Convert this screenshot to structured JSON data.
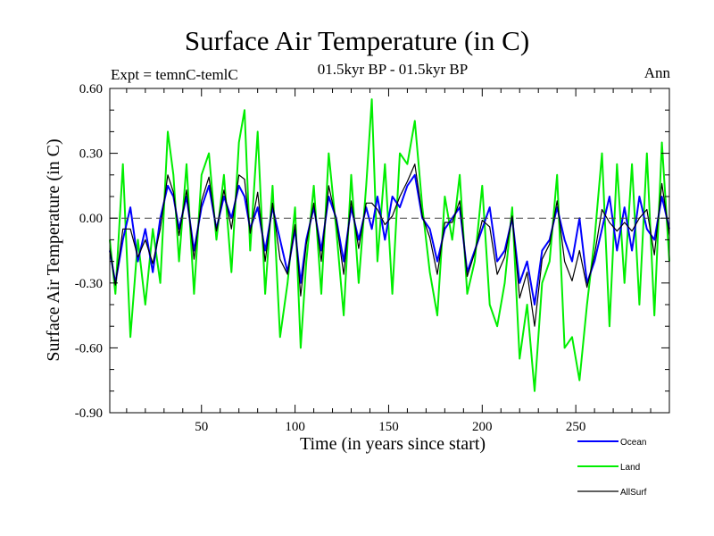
{
  "chart_data": {
    "type": "line",
    "title": "Surface Air Temperature (in C)",
    "subtitle": "01.5kyr BP - 01.5kyr BP",
    "experiment_label": "Expt = temnC-temlC",
    "season_label": "Ann",
    "xlabel": "Time (in years since start)",
    "ylabel": "Surface Air Temperature (in C)",
    "xlim": [
      1,
      300
    ],
    "ylim": [
      -0.9,
      0.6
    ],
    "x_ticks": [
      50,
      100,
      150,
      200,
      250
    ],
    "y_ticks": [
      0.6,
      0.3,
      0.0,
      -0.3,
      -0.6,
      -0.9
    ],
    "y_tick_labels": [
      "0.60",
      "0.30",
      "0.00",
      "-0.30",
      "-0.60",
      "-0.90"
    ],
    "zero_reference_line": true,
    "legend_position": "bottom-right, below axes",
    "series": [
      {
        "name": "Ocean",
        "color": "#0000ff",
        "x": [
          1,
          4,
          8,
          12,
          16,
          20,
          24,
          28,
          32,
          35,
          38,
          42,
          46,
          50,
          54,
          58,
          62,
          66,
          70,
          73,
          76,
          80,
          84,
          88,
          92,
          96,
          100,
          103,
          106,
          110,
          114,
          118,
          122,
          126,
          130,
          134,
          138,
          141,
          144,
          148,
          152,
          156,
          160,
          164,
          168,
          172,
          176,
          180,
          184,
          188,
          192,
          196,
          200,
          204,
          208,
          212,
          216,
          220,
          224,
          228,
          232,
          236,
          240,
          244,
          248,
          252,
          256,
          260,
          264,
          268,
          272,
          276,
          280,
          284,
          288,
          292,
          296,
          300
        ],
        "y": [
          -0.15,
          -0.3,
          -0.1,
          0.05,
          -0.2,
          -0.05,
          -0.25,
          0.0,
          0.15,
          0.1,
          -0.05,
          0.1,
          -0.15,
          0.05,
          0.15,
          -0.05,
          0.1,
          0.0,
          0.15,
          0.1,
          -0.05,
          0.05,
          -0.15,
          0.05,
          -0.1,
          -0.25,
          -0.05,
          -0.3,
          -0.1,
          0.05,
          -0.15,
          0.1,
          0.0,
          -0.2,
          0.05,
          -0.1,
          0.05,
          -0.05,
          0.1,
          -0.1,
          0.1,
          0.05,
          0.15,
          0.2,
          0.0,
          -0.05,
          -0.2,
          -0.05,
          0.0,
          0.05,
          -0.25,
          -0.15,
          -0.05,
          0.05,
          -0.2,
          -0.15,
          0.0,
          -0.3,
          -0.2,
          -0.4,
          -0.15,
          -0.1,
          0.05,
          -0.1,
          -0.2,
          0.0,
          -0.3,
          -0.2,
          -0.05,
          0.1,
          -0.15,
          0.05,
          -0.15,
          0.1,
          -0.05,
          -0.1,
          0.1,
          -0.05
        ]
      },
      {
        "name": "Land",
        "color": "#00ee00",
        "x": [
          1,
          4,
          8,
          12,
          16,
          20,
          24,
          28,
          32,
          35,
          38,
          42,
          46,
          50,
          54,
          58,
          62,
          66,
          70,
          73,
          76,
          80,
          84,
          88,
          92,
          96,
          100,
          103,
          106,
          110,
          114,
          118,
          122,
          126,
          130,
          134,
          138,
          141,
          144,
          148,
          152,
          156,
          160,
          164,
          168,
          172,
          176,
          180,
          184,
          188,
          192,
          196,
          200,
          204,
          208,
          212,
          216,
          220,
          224,
          228,
          232,
          236,
          240,
          244,
          248,
          252,
          256,
          260,
          264,
          268,
          272,
          276,
          280,
          284,
          288,
          292,
          296,
          300
        ],
        "y": [
          -0.1,
          -0.35,
          0.25,
          -0.55,
          -0.1,
          -0.4,
          -0.05,
          -0.3,
          0.4,
          0.2,
          -0.2,
          0.25,
          -0.35,
          0.2,
          0.3,
          -0.1,
          0.2,
          -0.25,
          0.35,
          0.5,
          -0.15,
          0.4,
          -0.35,
          0.15,
          -0.55,
          -0.3,
          0.05,
          -0.6,
          -0.2,
          0.15,
          -0.35,
          0.3,
          -0.05,
          -0.45,
          0.2,
          -0.3,
          0.15,
          0.55,
          -0.2,
          0.25,
          -0.35,
          0.3,
          0.25,
          0.45,
          0.05,
          -0.25,
          -0.45,
          0.1,
          -0.1,
          0.2,
          -0.35,
          -0.2,
          0.15,
          -0.4,
          -0.5,
          -0.3,
          0.05,
          -0.65,
          -0.4,
          -0.8,
          -0.3,
          -0.2,
          0.2,
          -0.6,
          -0.55,
          -0.75,
          -0.4,
          -0.1,
          0.3,
          -0.5,
          0.25,
          -0.3,
          0.25,
          -0.4,
          0.3,
          -0.45,
          0.35,
          -0.2
        ]
      },
      {
        "name": "AllSurf",
        "color": "#000000",
        "x": [
          1,
          4,
          8,
          12,
          16,
          20,
          24,
          28,
          32,
          35,
          38,
          42,
          46,
          50,
          54,
          58,
          62,
          66,
          70,
          73,
          76,
          80,
          84,
          88,
          92,
          96,
          100,
          103,
          106,
          110,
          114,
          118,
          122,
          126,
          130,
          134,
          138,
          141,
          144,
          148,
          152,
          156,
          160,
          164,
          168,
          172,
          176,
          180,
          184,
          188,
          192,
          196,
          200,
          204,
          208,
          212,
          216,
          220,
          224,
          228,
          232,
          236,
          240,
          244,
          248,
          252,
          256,
          260,
          264,
          268,
          272,
          276,
          280,
          284,
          288,
          292,
          296,
          300
        ],
        "y": [
          -0.14,
          -0.31,
          -0.05,
          -0.05,
          -0.18,
          -0.1,
          -0.21,
          -0.05,
          0.2,
          0.12,
          -0.08,
          0.13,
          -0.19,
          0.08,
          0.19,
          -0.06,
          0.13,
          -0.05,
          0.2,
          0.18,
          -0.07,
          0.12,
          -0.2,
          0.07,
          -0.19,
          -0.26,
          -0.03,
          -0.36,
          -0.12,
          0.07,
          -0.2,
          0.15,
          -0.01,
          -0.26,
          0.08,
          -0.14,
          0.07,
          0.07,
          0.04,
          -0.03,
          0.01,
          0.1,
          0.17,
          0.25,
          0.01,
          -0.09,
          -0.26,
          -0.02,
          -0.02,
          0.08,
          -0.27,
          -0.16,
          -0.01,
          -0.04,
          -0.26,
          -0.18,
          0.01,
          -0.37,
          -0.25,
          -0.5,
          -0.19,
          -0.12,
          0.08,
          -0.2,
          -0.29,
          -0.15,
          -0.32,
          -0.17,
          0.04,
          -0.02,
          -0.06,
          -0.02,
          -0.06,
          0.0,
          0.04,
          -0.17,
          0.16,
          -0.08
        ]
      }
    ]
  }
}
